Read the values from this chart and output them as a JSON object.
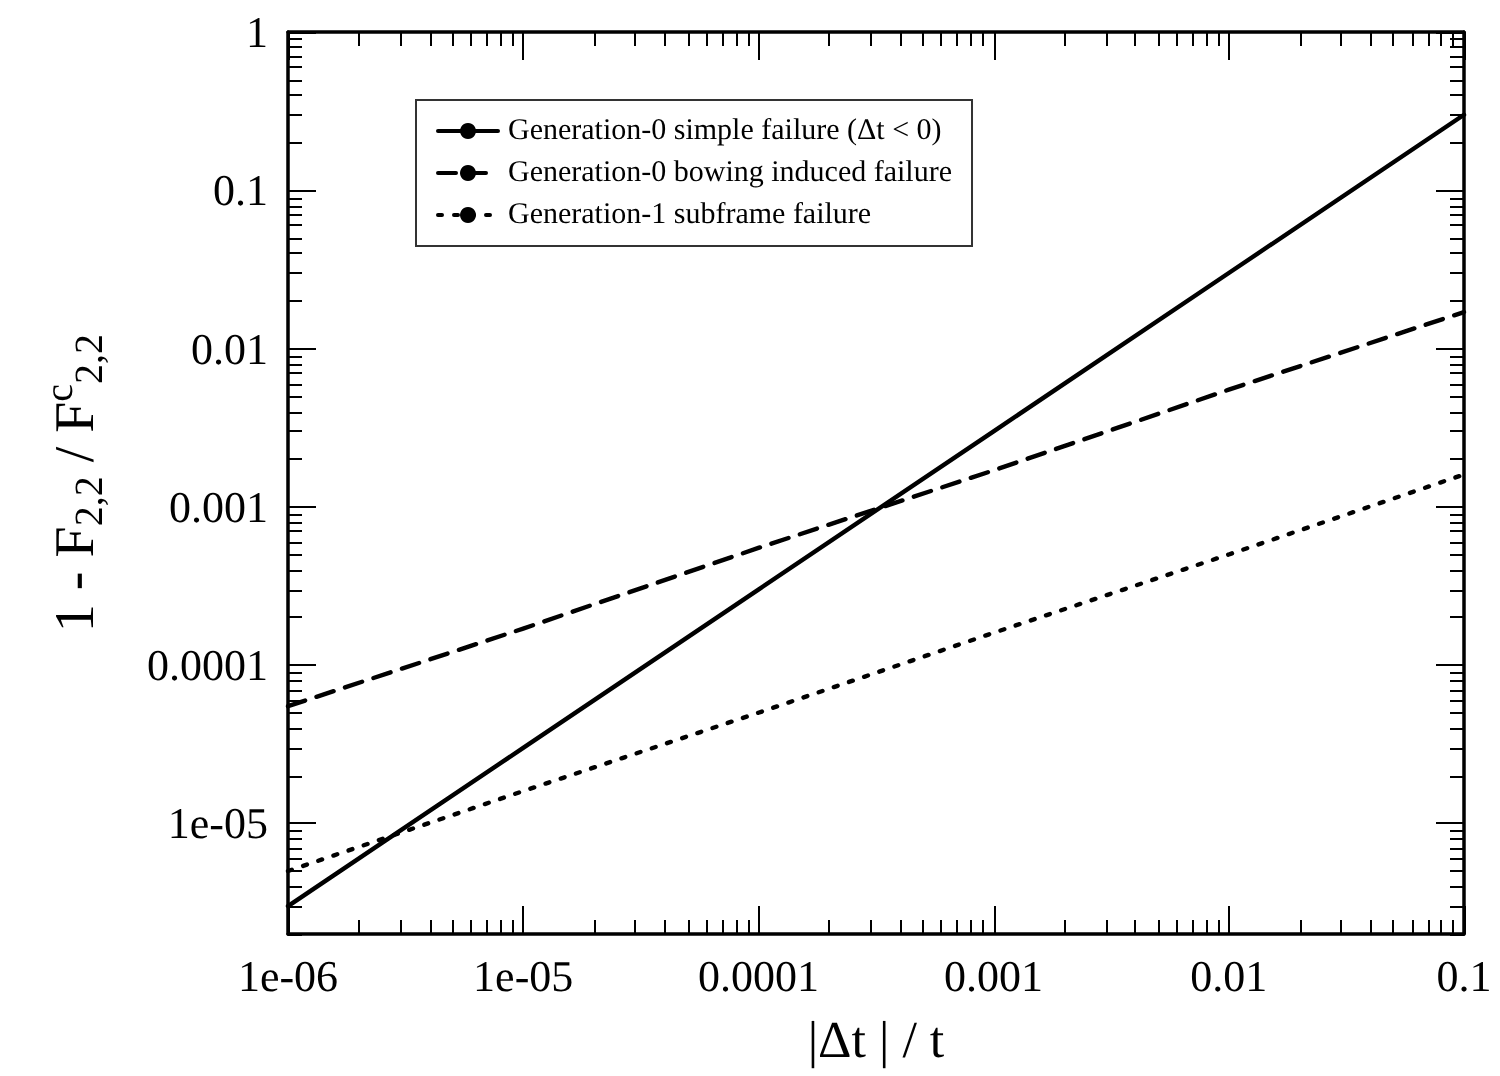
{
  "chart_data": {
    "type": "line",
    "xlabel": "|Δt | / t",
    "ylabel": "1 - F$_{2,2}$ / F$^{c}$$_{2,2}$",
    "x": [
      1e-06,
      1e-05,
      0.0001,
      0.001,
      0.01,
      0.1
    ],
    "series": [
      {
        "name": "Generation-0 simple failure (Δt < 0)",
        "color": "#000000",
        "line_style": "solid",
        "values": [
          3e-06,
          3e-05,
          0.0003,
          0.003,
          0.03,
          0.3
        ]
      },
      {
        "name": "Generation-0 bowing induced failure",
        "color": "#000000",
        "line_style": "dashed",
        "values": [
          5.5e-05,
          0.00017,
          0.00055,
          0.0017,
          0.0055,
          0.017
        ]
      },
      {
        "name": "Generation-1 subframe failure",
        "color": "#000000",
        "line_style": "dotted",
        "values": [
          5e-06,
          1.6e-05,
          5e-05,
          0.00016,
          0.0005,
          0.0016
        ]
      }
    ],
    "log": "xy",
    "xlim": [
      1e-06,
      0.1
    ],
    "ylim": [
      2e-06,
      1
    ],
    "xticks": [
      {
        "value": 1e-06,
        "label": "1e-06"
      },
      {
        "value": 1e-05,
        "label": "1e-05"
      },
      0.0001,
      0.001,
      0.01,
      0.1
    ],
    "yticks": [
      {
        "value": 1e-05,
        "label": "1e-05"
      },
      0.0001,
      0.001,
      0.01,
      0.1,
      1
    ],
    "grid": false,
    "legend": "top left",
    "marker": "none"
  }
}
